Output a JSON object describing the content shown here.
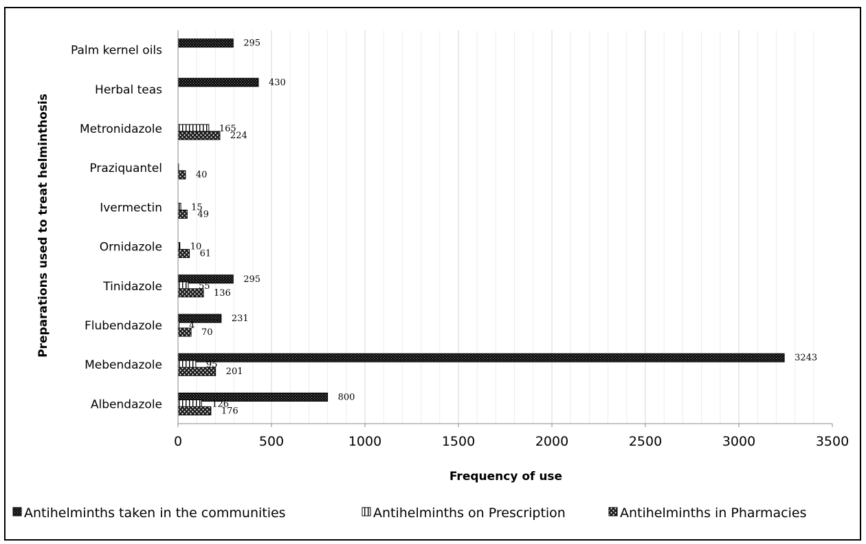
{
  "chart_data": {
    "type": "bar",
    "orientation": "horizontal",
    "categories": [
      "Albendazole",
      "Mebendazole",
      "Flubendazole",
      "Tinidazole",
      "Ornidazole",
      "Ivermectin",
      "Praziquantel",
      "Metronidazole",
      "Herbal teas",
      "Palm kernel oils"
    ],
    "series": [
      {
        "name": "Antihelminths taken in the communities",
        "values": [
          800,
          3243,
          231,
          295,
          null,
          null,
          null,
          null,
          430,
          295
        ]
      },
      {
        "name": "Antihelminths on Prescription",
        "values": [
          126,
          95,
          4,
          55,
          10,
          15,
          0,
          165,
          null,
          null
        ]
      },
      {
        "name": "Antihelminths in Pharmacies",
        "values": [
          176,
          201,
          70,
          136,
          61,
          49,
          40,
          224,
          null,
          null
        ]
      }
    ],
    "data_labels": [
      [
        "800",
        "3243",
        "231",
        "295",
        "",
        "",
        "",
        "",
        "430",
        "295"
      ],
      [
        "126",
        "95",
        "4",
        "55",
        "10",
        "15",
        "",
        "165",
        "",
        ""
      ],
      [
        "176",
        "201",
        "70",
        "136",
        "61",
        "49",
        "40",
        "224",
        "",
        ""
      ]
    ],
    "xlabel": "Frequency of use",
    "ylabel": "Preparations used to treat helminthosis",
    "xlim": [
      0,
      3500
    ],
    "xticks": [
      0,
      500,
      1000,
      1500,
      2000,
      2500,
      3000,
      3500
    ],
    "xtick_labels": [
      "0",
      "500",
      "1000",
      "1500",
      "2000",
      "2500",
      "3000",
      "3500"
    ],
    "grid": "vertical minor",
    "legend_position": "bottom",
    "colors": {
      "communities": "#111111",
      "prescription": "#ffffff",
      "pharmacies": "#555555"
    }
  }
}
